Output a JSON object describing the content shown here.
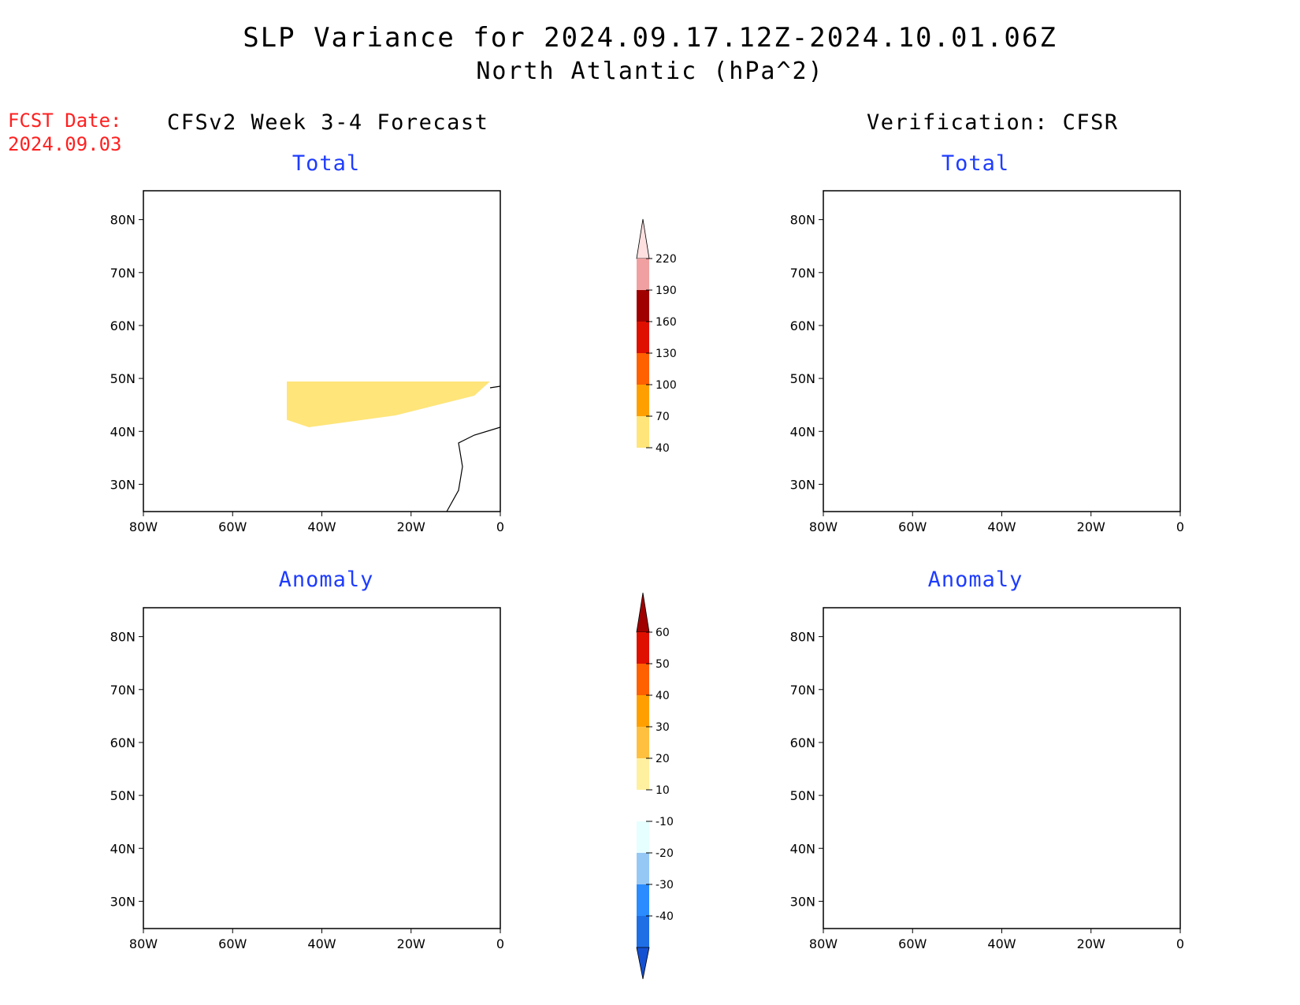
{
  "title": "SLP Variance for 2024.09.17.12Z-2024.10.01.06Z",
  "subtitle": "North Atlantic (hPa^2)",
  "fcst": {
    "line1": "FCST Date:",
    "line2": "2024.09.03"
  },
  "columns": {
    "left": "CFSv2 Week 3-4 Forecast",
    "right": "Verification: CFSR"
  },
  "panels": {
    "forecast_total": "Total",
    "verif_total": "Total",
    "forecast_anomaly": "Anomaly",
    "verif_anomaly": "Anomaly"
  },
  "axes": {
    "lat_labels": [
      "80N",
      "70N",
      "60N",
      "50N",
      "40N",
      "30N"
    ],
    "lon_labels": [
      "80W",
      "60W",
      "40W",
      "20W",
      "0"
    ]
  },
  "colorbars": {
    "total": {
      "labels": [
        "40",
        "70",
        "100",
        "130",
        "160",
        "190",
        "220"
      ],
      "colors": [
        "#ffe57a",
        "#ffa000",
        "#ff6000",
        "#e01000",
        "#a00000",
        "#f0a0a0",
        "#ffe0e0"
      ]
    },
    "anomaly": {
      "labels": [
        "-40",
        "-30",
        "-20",
        "-10",
        "10",
        "20",
        "30",
        "40",
        "50",
        "60"
      ],
      "colors": [
        "#1450d2",
        "#1e6ee6",
        "#2a8cff",
        "#96c8f5",
        "#e6ffff",
        "#ffffff",
        "#fff0a0",
        "#ffc040",
        "#ffa000",
        "#ff6000",
        "#e01000",
        "#a00000"
      ]
    }
  },
  "icons": [
    "map-coastline",
    "colorbar-arrow"
  ]
}
